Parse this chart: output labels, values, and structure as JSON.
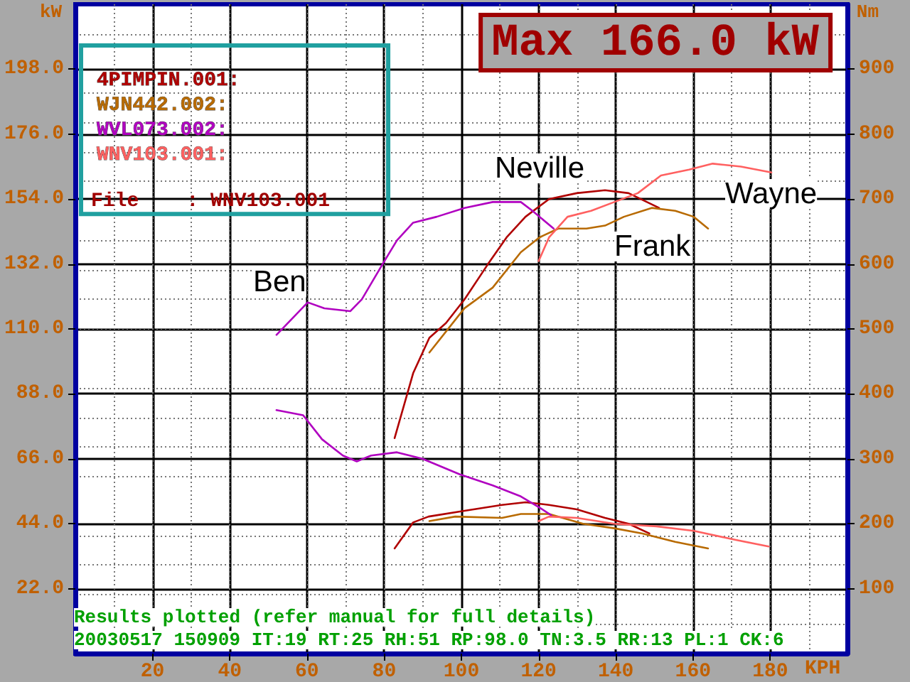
{
  "chart_data": {
    "type": "line",
    "title": "Max 166.0 kW",
    "xlabel": "KPH",
    "ylabel": "kW",
    "y2label": "Nm",
    "xlim": [
      0,
      200
    ],
    "xticks": [
      20,
      40,
      60,
      80,
      100,
      120,
      140,
      160,
      180
    ],
    "ylim": [
      0,
      220
    ],
    "yticks": [
      {
        "value": 22,
        "label": "22.0"
      },
      {
        "value": 44,
        "label": "44.0"
      },
      {
        "value": 66,
        "label": "66.0"
      },
      {
        "value": 88,
        "label": "88.0"
      },
      {
        "value": 110,
        "label": "110.0"
      },
      {
        "value": 132,
        "label": "132.0"
      },
      {
        "value": 154,
        "label": "154.0"
      },
      {
        "value": 176,
        "label": "176.0"
      },
      {
        "value": 198,
        "label": "198.0"
      }
    ],
    "y2lim": [
      0,
      1000
    ],
    "y2ticks": [
      100,
      200,
      300,
      400,
      500,
      600,
      700,
      800,
      900
    ],
    "grid": true,
    "legend": "top left",
    "marker": "none",
    "line_style": "solid",
    "series": [
      {
        "name": "4PIMPIN.001:",
        "color": "#b00000",
        "x": [
          82.7,
          87.5,
          91.7,
          96,
          100.8,
          106.9,
          111.7,
          116.6,
          122.7,
          129.9,
          137.2,
          143.3,
          151.2
        ],
        "values": [
          73,
          95,
          107,
          112,
          120,
          132,
          141,
          148,
          154,
          156,
          157,
          156,
          151
        ]
      },
      {
        "name": "WJN442.002:",
        "color": "#b86a00",
        "x": [
          91.7,
          100.8,
          108.1,
          115.4,
          120.2,
          125.1,
          132.4,
          137.2,
          142.1,
          149.3,
          155.4,
          160.2,
          163.9
        ],
        "values": [
          102,
          117,
          124,
          136,
          141,
          144,
          144,
          145,
          148,
          151,
          150,
          148,
          144
        ]
      },
      {
        "name": "WVL073.002:",
        "color": "#b000c0",
        "x": [
          52.1,
          60.2,
          64.5,
          71.2,
          74.2,
          79.6,
          83.3,
          87.5,
          93.6,
          100.8,
          108.1,
          115.4,
          118.4,
          123.9
        ],
        "values": [
          108,
          119,
          117,
          116,
          120,
          132,
          140,
          146,
          148,
          151,
          153,
          153,
          150,
          144
        ]
      },
      {
        "name": "WNV103.001:",
        "color": "#ff6060",
        "x": [
          120,
          122.7,
          127.5,
          133.6,
          139.6,
          145.7,
          151.7,
          159,
          165.1,
          172.4,
          180.3
        ],
        "values": [
          133,
          141,
          148,
          150,
          153,
          156,
          162,
          164,
          166,
          165,
          163
        ]
      },
      {
        "color": "#b00000",
        "axis": "y2",
        "x": [
          82.7,
          87.5,
          91.5,
          100.8,
          110.5,
          116.6,
          122.7,
          129.9,
          137.2,
          143.3,
          148.7
        ],
        "values": [
          162,
          202,
          211,
          220,
          229,
          233,
          229,
          222,
          209,
          200,
          185
        ]
      },
      {
        "color": "#b86a00",
        "axis": "y2",
        "x": [
          91.7,
          98.4,
          110.5,
          115.4,
          122.7,
          131.5,
          139.6,
          146.9,
          155.4,
          163.9
        ],
        "values": [
          204,
          211,
          209,
          215,
          215,
          200,
          193,
          185,
          172,
          162
        ]
      },
      {
        "color": "#b000c0",
        "axis": "y2",
        "x": [
          52.1,
          59,
          63.9,
          69.3,
          72.9,
          76.6,
          83.3,
          89.9,
          99.6,
          108.1,
          115.4,
          120.2,
          123.3
        ],
        "values": [
          375,
          367,
          330,
          305,
          296,
          305,
          310,
          300,
          276,
          259,
          242,
          225,
          213
        ]
      },
      {
        "color": "#ff6060",
        "axis": "y2",
        "x": [
          120,
          122.7,
          129.9,
          139.6,
          150.5,
          160.2,
          171.1,
          179.6
        ],
        "values": [
          204,
          211,
          209,
          200,
          196,
          189,
          175,
          165
        ]
      }
    ],
    "annotations": [
      "File    : WNV103.001",
      "Results plotted (refer manual for full details)",
      "20030517 150909 IT:19 RT:25 RH:51 RP:98.0 TN:3.5 RR:13 PL:1 CK:6",
      "Neville",
      "Frank",
      "Ben",
      "Wayne"
    ]
  }
}
